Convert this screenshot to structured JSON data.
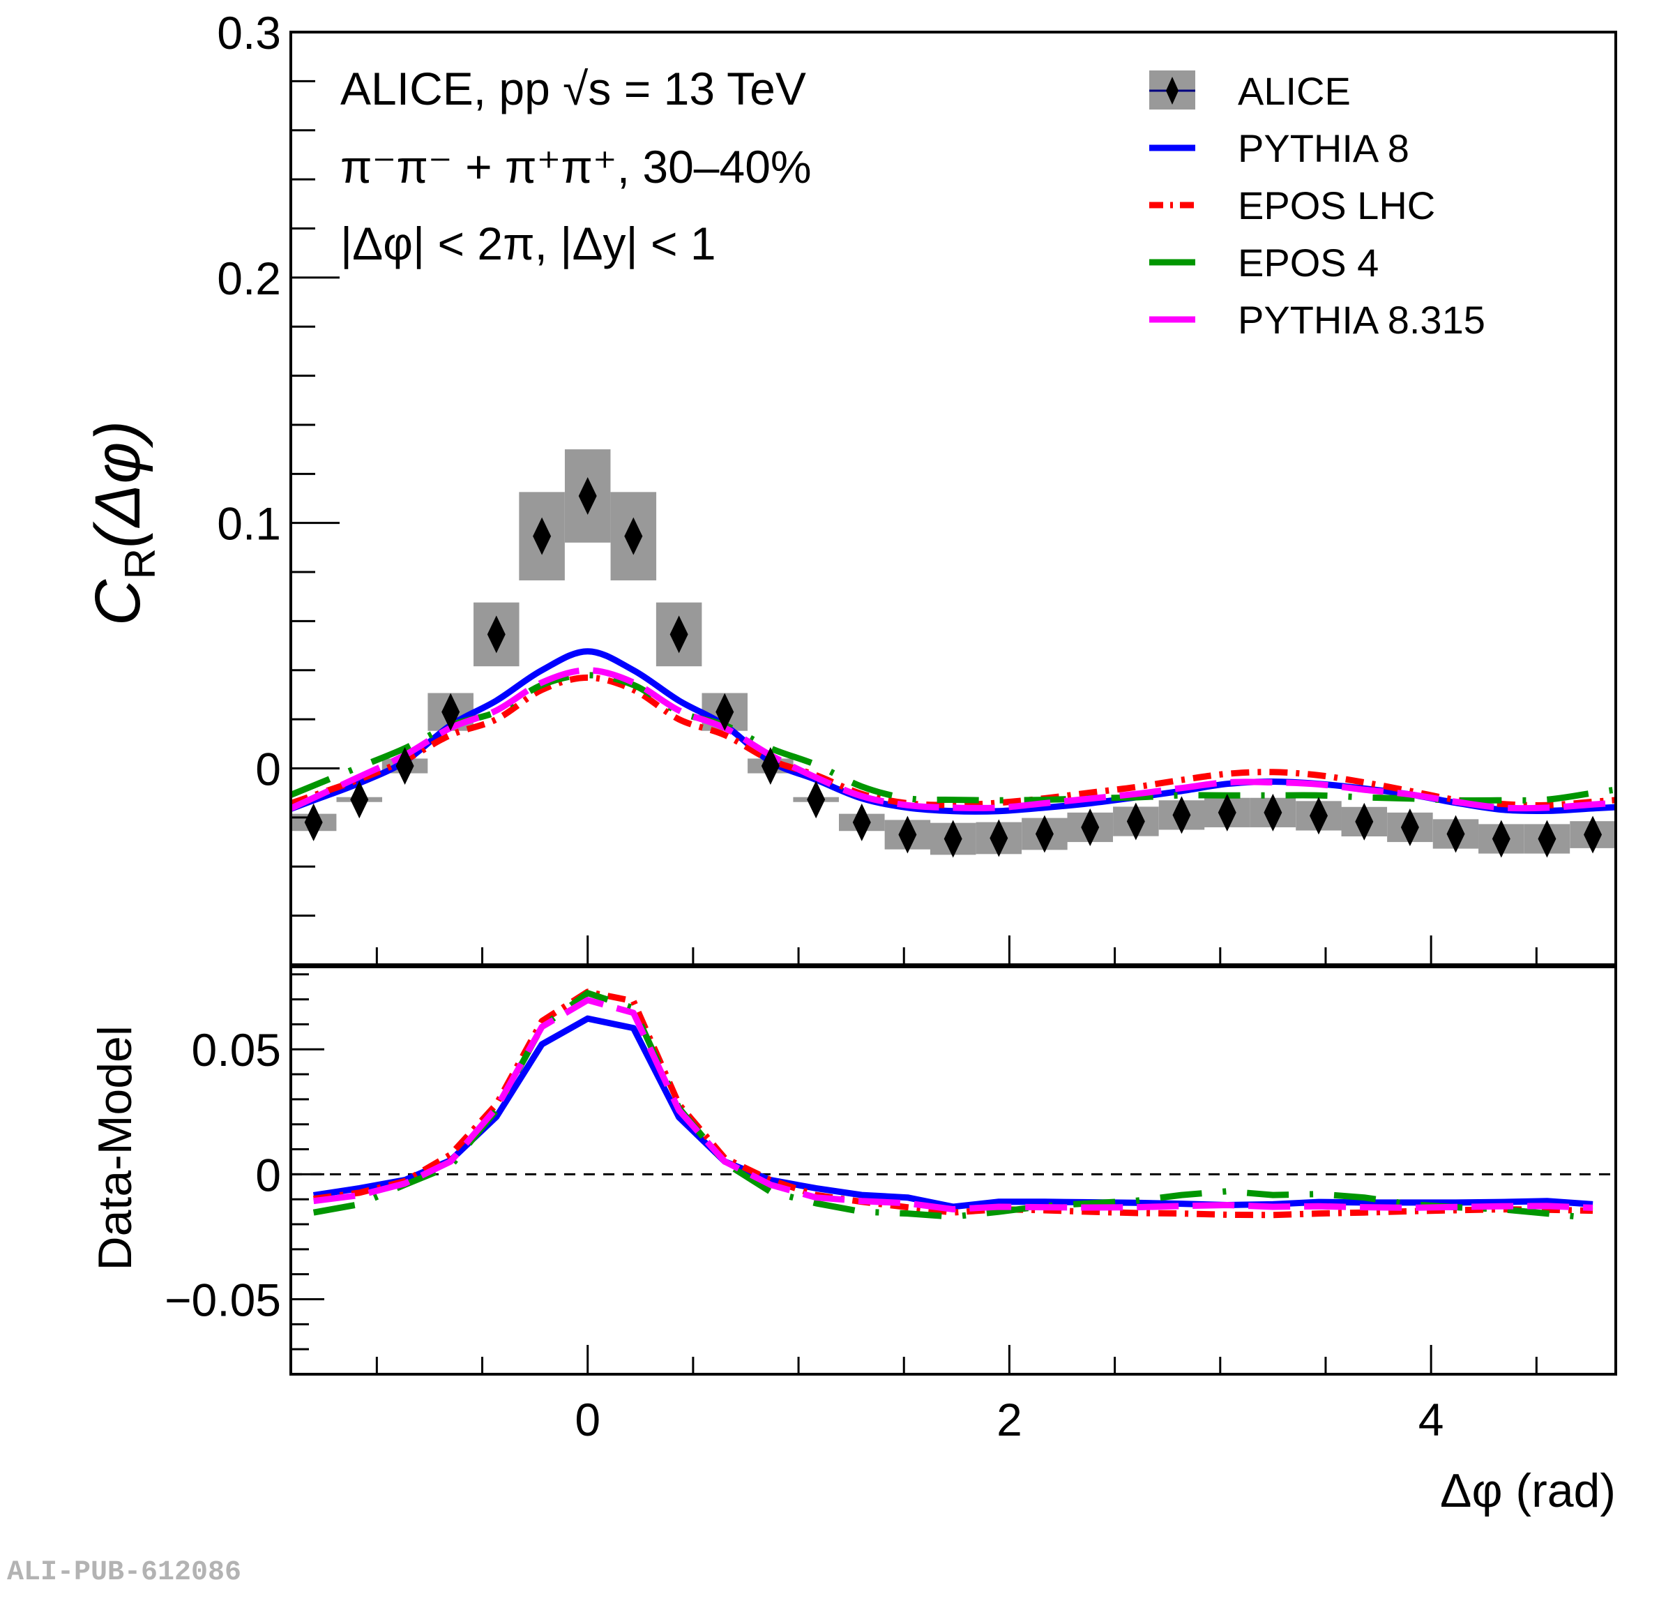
{
  "publication_id": "ALI-PUB-612086",
  "chart_data": {
    "type": "scatter",
    "title": "",
    "annotations": [
      "ALICE, pp √s = 13 TeV",
      "π⁻π⁻ +  π⁺π⁺, 30–40%",
      "|Δφ| < 2π, |Δy| < 1"
    ],
    "xlabel": "Δφ (rad)",
    "xlim": [
      -1.408,
      4.876
    ],
    "x_ticks": [
      0,
      2,
      4
    ],
    "x_tick_labels": [
      "0",
      "2",
      "4"
    ],
    "legend": {
      "placement": "top-right",
      "entries": [
        {
          "name": "ALICE",
          "style": "marker+syst-box",
          "color": "#000000"
        },
        {
          "name": "PYTHIA 8",
          "style": "solid",
          "color": "#0000ff"
        },
        {
          "name": "EPOS LHC",
          "style": "dash-dot",
          "color": "#ff0000"
        },
        {
          "name": "EPOS 4",
          "style": "long-dash",
          "color": "#009600"
        },
        {
          "name": "PYTHIA 8.315",
          "style": "dashed",
          "color": "#ff00ff"
        }
      ]
    },
    "x": [
      -1.3,
      -1.083,
      -0.867,
      -0.65,
      -0.433,
      -0.217,
      0.0,
      0.217,
      0.433,
      0.65,
      0.867,
      1.083,
      1.3,
      1.517,
      1.733,
      1.95,
      2.167,
      2.383,
      2.6,
      2.817,
      3.033,
      3.25,
      3.467,
      3.683,
      3.9,
      4.117,
      4.333,
      4.55,
      4.767
    ],
    "panels": [
      {
        "name": "main",
        "ylabel": "C_R(Δφ)",
        "ylabel_main": "C",
        "ylabel_sub": "R",
        "ylabel_rest": "(Δφ)",
        "ylim": [
          -0.08,
          0.3
        ],
        "y_ticks": [
          0,
          0.1,
          0.2,
          0.3
        ],
        "y_tick_labels": [
          "0",
          "0.1",
          "0.2",
          "0.3"
        ],
        "data": {
          "name": "ALICE",
          "y": [
            -0.022,
            -0.0127,
            0.001,
            0.023,
            0.0546,
            0.0946,
            0.111,
            0.0946,
            0.0546,
            0.023,
            0.001,
            -0.0127,
            -0.022,
            -0.027,
            -0.0287,
            -0.0284,
            -0.0267,
            -0.024,
            -0.0216,
            -0.019,
            -0.018,
            -0.018,
            -0.0193,
            -0.0217,
            -0.024,
            -0.0267,
            -0.0287,
            -0.0287,
            -0.027
          ],
          "syst": [
            0.0035,
            0.001,
            0.003,
            0.0077,
            0.013,
            0.018,
            0.019,
            0.018,
            0.013,
            0.0077,
            0.003,
            0.001,
            0.0035,
            0.006,
            0.0065,
            0.0065,
            0.0065,
            0.006,
            0.006,
            0.006,
            0.006,
            0.006,
            0.006,
            0.006,
            0.006,
            0.006,
            0.006,
            0.006,
            0.0055
          ]
        },
        "series": [
          {
            "name": "PYTHIA 8",
            "y": [
              -0.013,
              -0.006,
              0.0028,
              0.0176,
              0.0276,
              0.04,
              0.0477,
              0.04,
              0.0276,
              0.0176,
              0.0028,
              -0.0046,
              -0.0122,
              -0.016,
              -0.0174,
              -0.0174,
              -0.016,
              -0.0142,
              -0.0118,
              -0.0092,
              -0.0063,
              -0.0054,
              -0.0063,
              -0.0082,
              -0.0106,
              -0.014,
              -0.0168,
              -0.0173,
              -0.0163
            ]
          },
          {
            "name": "EPOS LHC",
            "y": [
              -0.011,
              -0.0045,
              0.0034,
              0.0136,
              0.02,
              0.032,
              0.037,
              0.032,
              0.02,
              0.0136,
              0.0034,
              -0.0028,
              -0.0104,
              -0.0142,
              -0.0149,
              -0.014,
              -0.0122,
              -0.0099,
              -0.0076,
              -0.0047,
              -0.0022,
              -0.0015,
              -0.0028,
              -0.0057,
              -0.0092,
              -0.0128,
              -0.0145,
              -0.015,
              -0.0136
            ]
          },
          {
            "name": "EPOS 4",
            "y": [
              -0.007,
              0.0006,
              0.0082,
              0.0176,
              0.023,
              0.034,
              0.038,
              0.034,
              0.023,
              0.0176,
              0.0082,
              0.0015,
              -0.0074,
              -0.0122,
              -0.0128,
              -0.013,
              -0.0128,
              -0.0122,
              -0.0118,
              -0.011,
              -0.011,
              -0.011,
              -0.011,
              -0.0118,
              -0.0123,
              -0.013,
              -0.013,
              -0.0127,
              -0.01
            ]
          },
          {
            "name": "PYTHIA 8.315",
            "y": [
              -0.012,
              -0.0034,
              0.0054,
              0.0165,
              0.0236,
              0.035,
              0.04,
              0.035,
              0.0236,
              0.0165,
              0.0054,
              -0.0037,
              -0.0113,
              -0.015,
              -0.016,
              -0.016,
              -0.0142,
              -0.0123,
              -0.0104,
              -0.008,
              -0.0057,
              -0.0057,
              -0.0065,
              -0.0087,
              -0.0106,
              -0.0136,
              -0.016,
              -0.016,
              -0.0147
            ]
          }
        ]
      },
      {
        "name": "ratio",
        "ylabel": "Data-Model",
        "ylim": [
          -0.08,
          0.083
        ],
        "y_ticks": [
          -0.05,
          0,
          0.05
        ],
        "y_tick_labels": [
          "−0.05",
          "0",
          "0.05"
        ],
        "reference_line": 0,
        "series": [
          {
            "name": "PYTHIA 8",
            "y": [
              -0.0084,
              -0.0056,
              -0.0023,
              0.0056,
              0.023,
              0.052,
              0.0623,
              0.0585,
              0.0228,
              0.0051,
              -0.0023,
              -0.0056,
              -0.0083,
              -0.0093,
              -0.013,
              -0.011,
              -0.011,
              -0.0112,
              -0.0114,
              -0.0118,
              -0.0123,
              -0.012,
              -0.0111,
              -0.0113,
              -0.0113,
              -0.0113,
              -0.0111,
              -0.0107,
              -0.012
            ]
          },
          {
            "name": "EPOS LHC",
            "y": [
              -0.0098,
              -0.0074,
              -0.0028,
              0.0079,
              0.028,
              0.0613,
              0.073,
              0.0693,
              0.028,
              0.0065,
              -0.0023,
              -0.0083,
              -0.011,
              -0.0132,
              -0.0153,
              -0.014,
              -0.0144,
              -0.015,
              -0.0155,
              -0.0157,
              -0.0162,
              -0.0163,
              -0.0157,
              -0.0153,
              -0.0148,
              -0.0144,
              -0.014,
              -0.0142,
              -0.0146
            ]
          },
          {
            "name": "EPOS 4",
            "y": [
              -0.0153,
              -0.012,
              -0.0042,
              0.0033,
              0.0256,
              0.059,
              0.0725,
              0.0665,
              0.0265,
              0.0046,
              -0.007,
              -0.0116,
              -0.015,
              -0.0157,
              -0.017,
              -0.015,
              -0.0127,
              -0.0116,
              -0.0106,
              -0.0083,
              -0.0068,
              -0.0083,
              -0.0079,
              -0.0093,
              -0.012,
              -0.0132,
              -0.014,
              -0.0157,
              -0.0176
            ]
          },
          {
            "name": "PYTHIA 8.315",
            "y": [
              -0.0107,
              -0.0084,
              -0.0037,
              0.0051,
              0.0265,
              0.059,
              0.0697,
              0.0646,
              0.0256,
              0.0051,
              -0.0042,
              -0.0093,
              -0.0107,
              -0.0116,
              -0.014,
              -0.013,
              -0.0132,
              -0.0133,
              -0.0132,
              -0.0127,
              -0.0123,
              -0.013,
              -0.0128,
              -0.0132,
              -0.0134,
              -0.0131,
              -0.0128,
              -0.0127,
              -0.0134
            ]
          }
        ]
      }
    ]
  }
}
